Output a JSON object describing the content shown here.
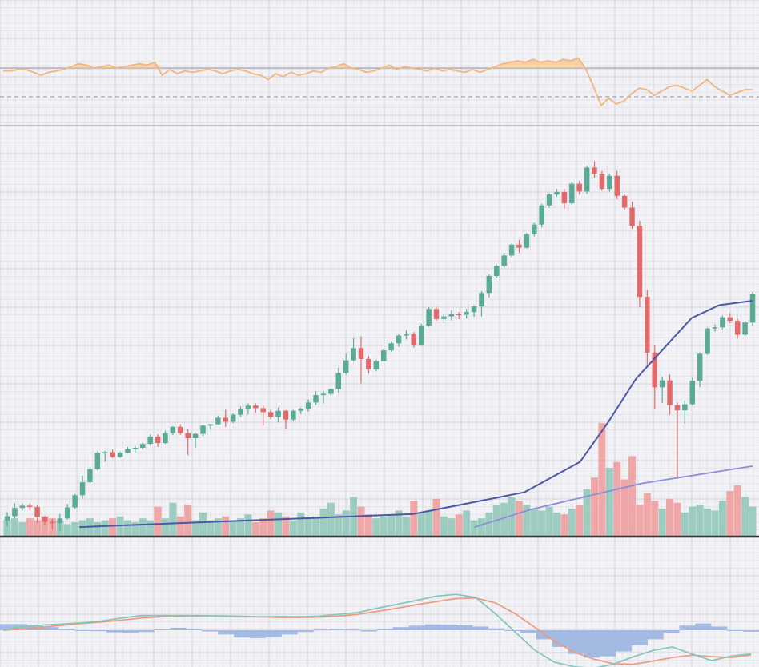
{
  "chart_data": [
    {
      "panel": "rsi",
      "type": "line",
      "title": "",
      "overbought": 70,
      "midline": 50,
      "oversold": 30,
      "ylim": [
        20,
        95
      ],
      "values": [
        68,
        68,
        69,
        69,
        67,
        65,
        67,
        68,
        69,
        71,
        73,
        72,
        70,
        71,
        72,
        70,
        71,
        72,
        73,
        72,
        74,
        65,
        69,
        66,
        68,
        67,
        68,
        69,
        68,
        66,
        68,
        69,
        68,
        66,
        65,
        62,
        66,
        64,
        67,
        65,
        66,
        68,
        67,
        70,
        71,
        73,
        70,
        69,
        67,
        68,
        70,
        72,
        69,
        71,
        70,
        69,
        68,
        70,
        68,
        69,
        68,
        67,
        69,
        67,
        69,
        71,
        73,
        74,
        75,
        74,
        76,
        74,
        75,
        74,
        76,
        75,
        77,
        69,
        57,
        44,
        49,
        45,
        47,
        52,
        56,
        55,
        51,
        54,
        57,
        58,
        56,
        54,
        58,
        62,
        57,
        54,
        51,
        53,
        55,
        55
      ],
      "colors": {
        "line": "#f0b67f",
        "fill": "#f5c593",
        "guides": "#a2a3ad"
      }
    },
    {
      "panel": "price",
      "type": "candlestick",
      "title": "",
      "ylim": [
        10,
        100
      ],
      "candles": [
        [
          13.5,
          15.4,
          12.1,
          14.5
        ],
        [
          14.5,
          17.4,
          14,
          16.4
        ],
        [
          16.4,
          17.4,
          15.8,
          16.9
        ],
        [
          16.9,
          17.4,
          15.9,
          16.6
        ],
        [
          16.6,
          17,
          13,
          14.3
        ],
        [
          14.3,
          14.6,
          12.5,
          13.2
        ],
        [
          13.2,
          13.9,
          11.5,
          12.9
        ],
        [
          12.9,
          15,
          11.1,
          14
        ],
        [
          14,
          17.3,
          13.7,
          16.5
        ],
        [
          16.5,
          19.6,
          16.2,
          19.3
        ],
        [
          19.3,
          23.8,
          18.5,
          22.3
        ],
        [
          22.3,
          25.8,
          22,
          25.3
        ],
        [
          25.3,
          29.4,
          25,
          29
        ],
        [
          29,
          29.5,
          27,
          29.2
        ],
        [
          29.2,
          29.8,
          27.8,
          28.1
        ],
        [
          28.1,
          29.3,
          27.9,
          29.1
        ],
        [
          29.1,
          30.4,
          29,
          29.9
        ],
        [
          29.9,
          30.6,
          29.1,
          30.2
        ],
        [
          30.2,
          31.4,
          29.8,
          31.1
        ],
        [
          31.1,
          33.3,
          30.7,
          32.8
        ],
        [
          32.8,
          33.3,
          30.4,
          31.3
        ],
        [
          31.3,
          34.1,
          31.1,
          33.6
        ],
        [
          33.6,
          35.2,
          33.1,
          35
        ],
        [
          35,
          35.6,
          33.2,
          33.6
        ],
        [
          33.6,
          34.5,
          28.5,
          32.4
        ],
        [
          32.4,
          33.6,
          30.2,
          33.4
        ],
        [
          33.4,
          35.5,
          32.9,
          35.3
        ],
        [
          35.3,
          35.7,
          34.4,
          35.6
        ],
        [
          35.6,
          37.6,
          35.5,
          37.1
        ],
        [
          37.1,
          38.9,
          35,
          36.2
        ],
        [
          36.2,
          38.1,
          35.9,
          37.8
        ],
        [
          37.8,
          39.7,
          37.3,
          39.1
        ],
        [
          39.1,
          40.4,
          37.9,
          39.9
        ],
        [
          39.9,
          40.4,
          38.3,
          39.3
        ],
        [
          39.3,
          39.9,
          35.3,
          38.4
        ],
        [
          38.4,
          38.9,
          36.8,
          37.3
        ],
        [
          37.3,
          39.4,
          36,
          38.7
        ],
        [
          38.7,
          38.9,
          34.6,
          36.7
        ],
        [
          36.7,
          38.9,
          36.3,
          38.7
        ],
        [
          38.7,
          39.5,
          38,
          39.2
        ],
        [
          39.2,
          41.3,
          38.5,
          40.6
        ],
        [
          40.6,
          43.2,
          40.1,
          42.3
        ],
        [
          42.3,
          43.3,
          40.4,
          42.6
        ],
        [
          42.6,
          43.8,
          42.2,
          43.7
        ],
        [
          43.7,
          48.6,
          42.9,
          47.4
        ],
        [
          47.4,
          51.8,
          47,
          50.3
        ],
        [
          50.3,
          55.4,
          50.1,
          53.1
        ],
        [
          53.1,
          55.8,
          45,
          50.6
        ],
        [
          50.6,
          51.3,
          47.3,
          48.2
        ],
        [
          48.2,
          50.4,
          47.8,
          50.1
        ],
        [
          50.1,
          53,
          50,
          52.6
        ],
        [
          52.6,
          54.5,
          52.3,
          54.2
        ],
        [
          54.2,
          56.3,
          53.4,
          56
        ],
        [
          56,
          57.2,
          55.1,
          56.3
        ],
        [
          56.3,
          56.8,
          53.2,
          53.7
        ],
        [
          53.7,
          58.7,
          53.6,
          58.3
        ],
        [
          58.3,
          62.5,
          58,
          62.1
        ],
        [
          62.1,
          62.6,
          59.4,
          59.8
        ],
        [
          59.8,
          60.9,
          58.8,
          60.4
        ],
        [
          60.4,
          61.8,
          59.5,
          60.9
        ],
        [
          60.9,
          61.4,
          59.8,
          60.8
        ],
        [
          60.8,
          62.1,
          59.9,
          61.4
        ],
        [
          61.4,
          63,
          60.3,
          62.7
        ],
        [
          62.7,
          66.2,
          60.4,
          65.8
        ],
        [
          65.8,
          70.1,
          64.8,
          69.7
        ],
        [
          69.7,
          72.3,
          69.3,
          72
        ],
        [
          72,
          75,
          71.6,
          74.4
        ],
        [
          74.4,
          77.2,
          74,
          76.9
        ],
        [
          76.9,
          78,
          75,
          76.2
        ],
        [
          76.2,
          79.6,
          76,
          79.3
        ],
        [
          79.3,
          81.9,
          78.8,
          81.5
        ],
        [
          81.5,
          86.3,
          80.8,
          85.9
        ],
        [
          85.9,
          88.7,
          85.4,
          88.4
        ],
        [
          88.4,
          89.7,
          87.9,
          89
        ],
        [
          89,
          89.7,
          85.2,
          86.4
        ],
        [
          86.4,
          91.3,
          86.1,
          90.9
        ],
        [
          90.9,
          91.6,
          88.4,
          89.1
        ],
        [
          89.1,
          95,
          88.5,
          94.6
        ],
        [
          94.6,
          96,
          92.3,
          93.2
        ],
        [
          93.2,
          93.8,
          89.3,
          89.7
        ],
        [
          89.7,
          93.2,
          89.1,
          92.7
        ],
        [
          92.7,
          93.8,
          87.3,
          88.1
        ],
        [
          88.1,
          88.4,
          84.9,
          85.4
        ],
        [
          85.4,
          86.8,
          80.5,
          81.2
        ],
        [
          81.2,
          82.4,
          62.5,
          64.9
        ],
        [
          64.9,
          66.5,
          49,
          52.1
        ],
        [
          52.1,
          53.8,
          39,
          44.1
        ],
        [
          44.1,
          46.5,
          40.5,
          45.7
        ],
        [
          45.7,
          47,
          37.8,
          40
        ],
        [
          40,
          40.6,
          23.4,
          38.8
        ],
        [
          38.8,
          41.1,
          35.7,
          40.2
        ],
        [
          40.2,
          46.3,
          40,
          45.6
        ],
        [
          45.6,
          52.1,
          44.2,
          51.8
        ],
        [
          51.8,
          57.9,
          51.6,
          57.6
        ],
        [
          57.6,
          58.6,
          56.9,
          57.9
        ],
        [
          57.9,
          60.6,
          57.5,
          60.2
        ],
        [
          60.2,
          61.2,
          58.9,
          59.4
        ],
        [
          59.4,
          59.9,
          55.3,
          56.2
        ],
        [
          56.2,
          59.4,
          55.8,
          59
        ],
        [
          59,
          66,
          58.3,
          65.6
        ]
      ],
      "ma_fast": [
        [
          13,
          12
        ],
        [
          33,
          13
        ],
        [
          53,
          14
        ],
        [
          73,
          15
        ],
        [
          93,
          20
        ],
        [
          103,
          27
        ],
        [
          108,
          36
        ],
        [
          113,
          46
        ],
        [
          118,
          53
        ],
        [
          123,
          60
        ],
        [
          128,
          63
        ],
        [
          134,
          64
        ]
      ],
      "ma_slow": [
        [
          84,
          12
        ],
        [
          94,
          16
        ],
        [
          104,
          19
        ],
        [
          114,
          22
        ],
        [
          124,
          24
        ],
        [
          134,
          26
        ]
      ],
      "colors": {
        "up": "#5aab96",
        "down": "#e26a6a",
        "ma_fast": "#4b57a6",
        "ma_slow": "#8b8dd6"
      }
    },
    {
      "panel": "volume",
      "type": "bar",
      "title": "",
      "values": [
        8,
        9,
        7,
        9,
        8,
        10,
        9,
        8,
        6,
        7,
        8,
        9,
        7,
        8,
        9,
        10,
        8,
        7,
        9,
        8,
        15,
        9,
        17,
        10,
        16,
        8,
        12,
        8,
        9,
        10,
        8,
        9,
        11,
        7,
        9,
        13,
        12,
        10,
        8,
        12,
        9,
        10,
        14,
        17,
        11,
        13,
        20,
        15,
        11,
        9,
        10,
        11,
        13,
        10,
        18,
        12,
        13,
        19,
        10,
        9,
        11,
        13,
        8,
        9,
        12,
        16,
        17,
        20,
        18,
        16,
        14,
        13,
        15,
        12,
        11,
        14,
        16,
        24,
        30,
        58,
        35,
        38,
        29,
        41,
        16,
        22,
        18,
        14,
        19,
        17,
        12,
        15,
        16,
        14,
        13,
        18,
        23,
        26,
        20,
        15
      ],
      "colors": {
        "up": "#8ec7b6",
        "down": "#ee9a9a"
      }
    },
    {
      "panel": "macd",
      "type": "line",
      "title": "",
      "macd": [
        0,
        0.12,
        0.17,
        0.2,
        0.24,
        0.3,
        0.4,
        0.48,
        0.48,
        0.48,
        0.48,
        0.46,
        0.44,
        0.44,
        0.45,
        0.44,
        0.46,
        0.52,
        0.58,
        0.72,
        0.85,
        0.98,
        1.12,
        1.18,
        1.08,
        0.55,
        -0.05,
        -0.65,
        -1.05,
        -1.2,
        -1.25,
        -1.12,
        -0.88,
        -0.67,
        -0.55,
        -0.78,
        -1,
        -0.85,
        -0.78
      ],
      "signal": [
        0,
        0.05,
        0.1,
        0.16,
        0.22,
        0.27,
        0.33,
        0.4,
        0.44,
        0.46,
        0.47,
        0.47,
        0.46,
        0.44,
        0.42,
        0.42,
        0.43,
        0.46,
        0.52,
        0.62,
        0.72,
        0.84,
        0.94,
        1.04,
        1.06,
        0.9,
        0.55,
        0.1,
        -0.35,
        -0.72,
        -0.95,
        -1.1,
        -1.12,
        -1.02,
        -0.9,
        -0.82,
        -0.87,
        -0.9,
        -0.82
      ],
      "histogram": [
        0.2,
        0.2,
        0.16,
        0.1,
        0.05,
        0,
        -0.03,
        -0.07,
        -0.1,
        -0.06,
        0.03,
        0.08,
        0.04,
        -0.04,
        -0.14,
        -0.24,
        -0.26,
        -0.22,
        -0.14,
        -0.06,
        0.02,
        0.05,
        0.02,
        -0.04,
        0.04,
        0.1,
        0.15,
        0.19,
        0.18,
        0.16,
        0.12,
        0.06,
        0,
        -0.1,
        -0.3,
        -0.55,
        -0.78,
        -0.9,
        -0.86,
        -0.7,
        -0.5,
        -0.3,
        -0.08,
        0.15,
        0.22,
        0.12,
        -0.02,
        -0.05
      ],
      "colors": {
        "macd": "#85c4bd",
        "signal": "#ec9a7c",
        "histogram": "#9ab4e0"
      }
    }
  ]
}
